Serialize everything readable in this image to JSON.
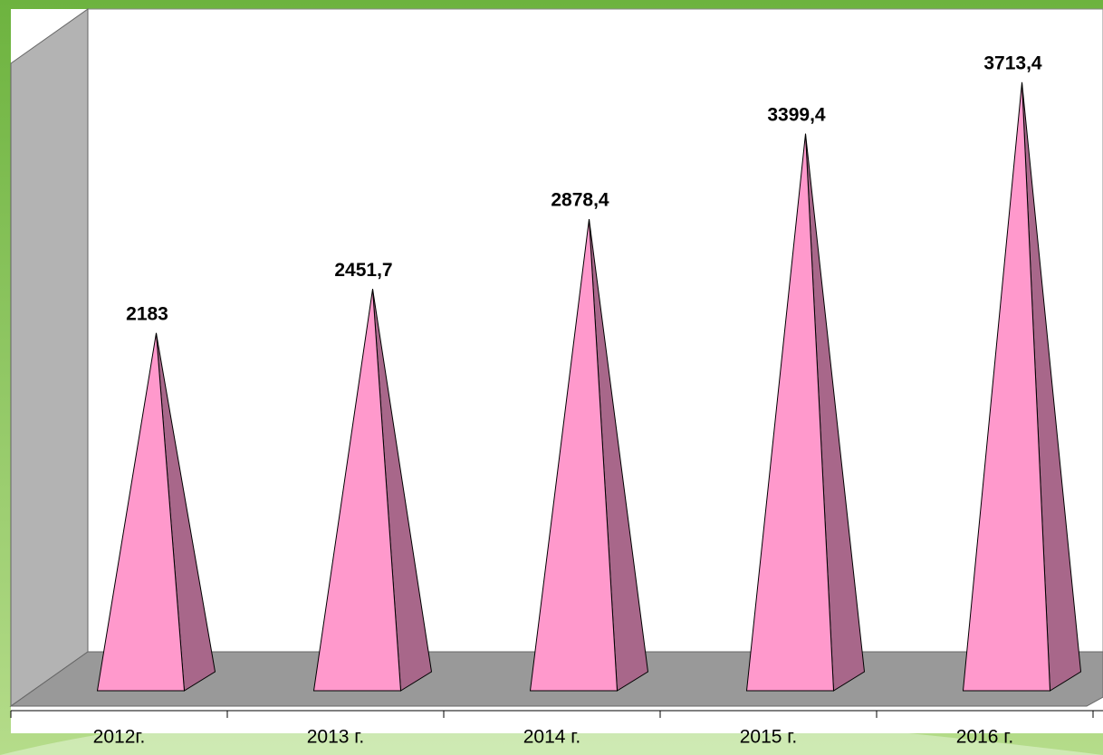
{
  "chart_data": {
    "type": "pyramid",
    "categories": [
      "2012г.",
      "2013 г.",
      "2014 г.",
      "2015 г.",
      "2016 г."
    ],
    "values": [
      2183,
      2451.7,
      2878.4,
      3399.4,
      3713.4
    ],
    "value_labels": [
      "2183",
      "2451,7",
      "2878,4",
      "3399,4",
      "3713,4"
    ],
    "color": "#ff99cc",
    "ylim": [
      0,
      4000
    ]
  }
}
